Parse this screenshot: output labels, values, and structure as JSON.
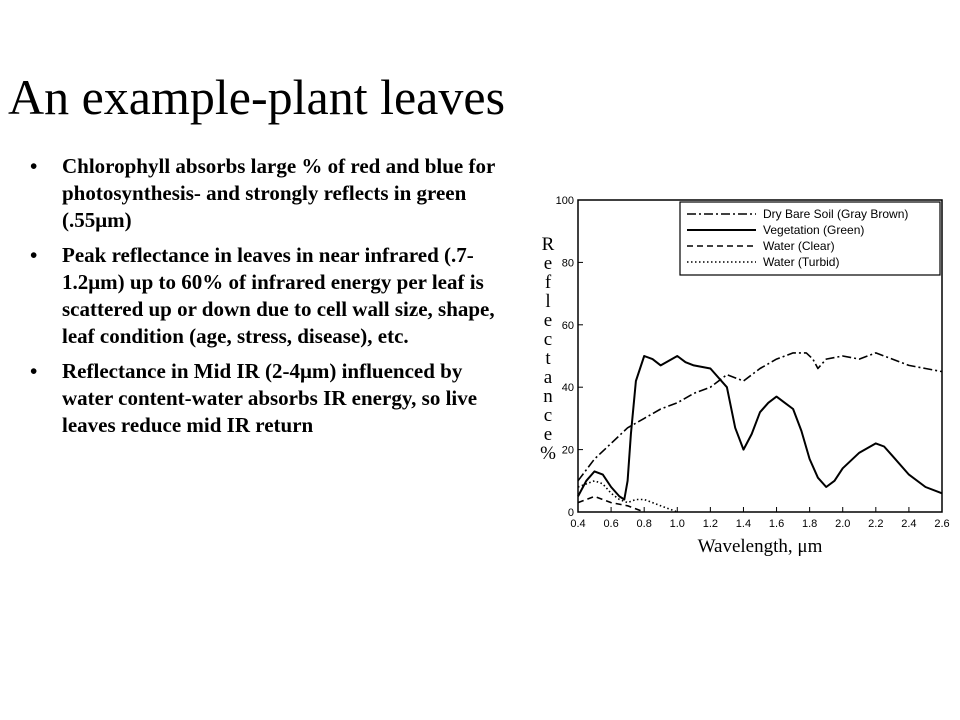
{
  "slide": {
    "title": "An example-plant leaves",
    "bullet_symbol": "•",
    "bullets": [
      "Chlorophyll absorbs large % of red and blue for photosynthesis- and strongly reflects in green (.55μm)",
      "Peak reflectance in leaves in near infrared (.7-1.2μm) up to 60% of infrared energy per leaf is scattered up or down due to cell wall size, shape, leaf condition (age, stress, disease), etc.",
      "Reflectance in Mid IR (2-4μm) influenced by water content-water absorbs IR energy, so live leaves reduce mid IR return"
    ]
  },
  "chart_data": {
    "type": "line",
    "xlabel": "Wavelength, μm",
    "ylabel": "Reflectance %",
    "xlim": [
      0.4,
      2.6
    ],
    "ylim": [
      0,
      100
    ],
    "x_ticks": [
      0.4,
      0.6,
      0.8,
      1.0,
      1.2,
      1.4,
      1.6,
      1.8,
      2.0,
      2.2,
      2.4,
      2.6
    ],
    "x_tick_labels": [
      "0.4",
      "0.6",
      "0.8",
      "1.0",
      "1.2",
      "1.4",
      "1.6",
      "1.8",
      "2.0",
      "2.2",
      "2.4",
      "2.6"
    ],
    "y_ticks": [
      0,
      20,
      40,
      60,
      80,
      100
    ],
    "y_tick_labels": [
      "0",
      "20",
      "40",
      "60",
      "80",
      "100"
    ],
    "grid": false,
    "legend_position": "top-right",
    "series": [
      {
        "name": "Dry Bare Soil (Gray Brown)",
        "dash": "dash-dot",
        "x": [
          0.4,
          0.5,
          0.6,
          0.7,
          0.8,
          0.9,
          1.0,
          1.1,
          1.2,
          1.3,
          1.4,
          1.5,
          1.6,
          1.7,
          1.78,
          1.82,
          1.85,
          1.9,
          2.0,
          2.1,
          2.2,
          2.3,
          2.4,
          2.5,
          2.6
        ],
        "y": [
          10,
          17,
          22,
          27,
          30,
          33,
          35,
          38,
          40,
          44,
          42,
          46,
          49,
          51,
          51,
          49,
          46,
          49,
          50,
          49,
          51,
          49,
          47,
          46,
          45
        ]
      },
      {
        "name": "Vegetation (Green)",
        "dash": "solid",
        "x": [
          0.4,
          0.45,
          0.5,
          0.55,
          0.6,
          0.65,
          0.68,
          0.7,
          0.72,
          0.75,
          0.8,
          0.85,
          0.9,
          1.0,
          1.05,
          1.1,
          1.2,
          1.3,
          1.35,
          1.4,
          1.45,
          1.5,
          1.55,
          1.6,
          1.65,
          1.7,
          1.75,
          1.8,
          1.85,
          1.9,
          1.95,
          2.0,
          2.1,
          2.2,
          2.25,
          2.3,
          2.4,
          2.5,
          2.6
        ],
        "y": [
          5,
          10,
          13,
          12,
          8,
          5,
          4,
          10,
          25,
          42,
          50,
          49,
          47,
          50,
          48,
          47,
          46,
          40,
          27,
          20,
          25,
          32,
          35,
          37,
          35,
          33,
          26,
          17,
          11,
          8,
          10,
          14,
          19,
          22,
          21,
          18,
          12,
          8,
          6
        ]
      },
      {
        "name": "Water (Clear)",
        "dash": "dashed",
        "x": [
          0.4,
          0.45,
          0.5,
          0.6,
          0.7,
          0.75,
          0.8
        ],
        "y": [
          3,
          4,
          5,
          3,
          2,
          1,
          0
        ]
      },
      {
        "name": "Water (Turbid)",
        "dash": "dotted",
        "x": [
          0.4,
          0.45,
          0.5,
          0.55,
          0.6,
          0.65,
          0.7,
          0.75,
          0.8,
          0.85,
          0.9,
          0.95,
          1.0
        ],
        "y": [
          8,
          9,
          10,
          9,
          6,
          4,
          3,
          4,
          4,
          3,
          2,
          1,
          0
        ]
      }
    ]
  },
  "colors": {
    "ink": "#000000",
    "background": "#ffffff"
  }
}
